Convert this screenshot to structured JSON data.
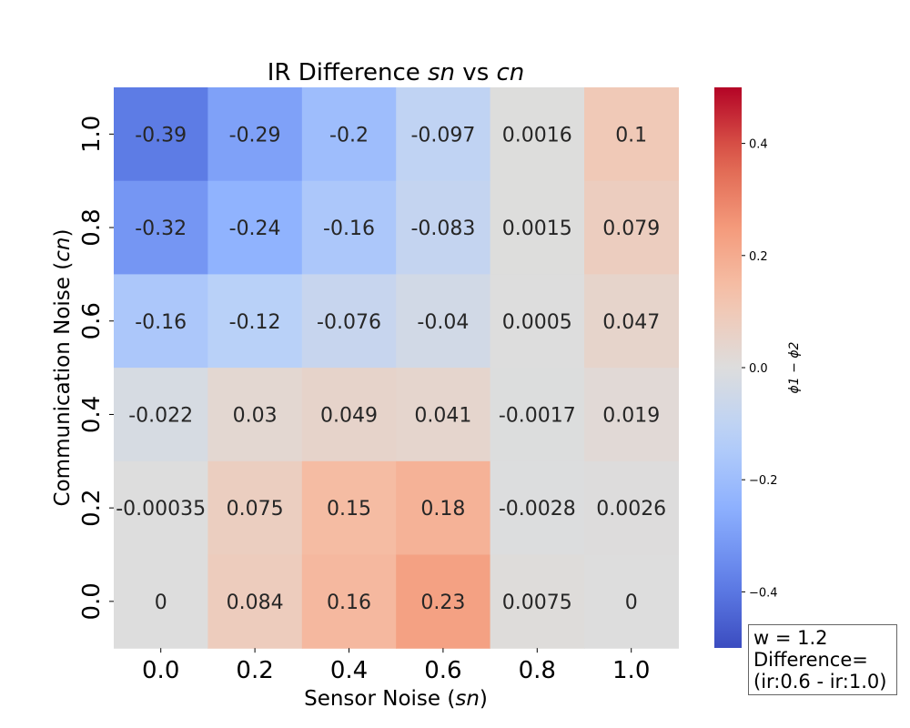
{
  "chart_data": {
    "type": "heatmap",
    "title": "IR Difference sn vs cn",
    "title_parts": {
      "prefix": "IR Difference ",
      "var1": "sn",
      "mid": " vs ",
      "var2": "cn"
    },
    "xlabel": "Sensor Noise (sn)",
    "xlabel_parts": {
      "prefix": "Sensor Noise (",
      "var": "sn",
      "suffix": ")"
    },
    "ylabel": "Communication Noise (cn)",
    "ylabel_parts": {
      "prefix": "Communication Noise (",
      "var": "cn",
      "suffix": ")"
    },
    "x_categories": [
      "0.0",
      "0.2",
      "0.4",
      "0.6",
      "0.8",
      "1.0"
    ],
    "y_categories": [
      "1.0",
      "0.8",
      "0.6",
      "0.4",
      "0.2",
      "0.0"
    ],
    "values": [
      [
        -0.39,
        -0.29,
        -0.2,
        -0.097,
        0.0016,
        0.1
      ],
      [
        -0.32,
        -0.24,
        -0.16,
        -0.083,
        0.0015,
        0.079
      ],
      [
        -0.16,
        -0.12,
        -0.076,
        -0.04,
        0.0005,
        0.047
      ],
      [
        -0.022,
        0.03,
        0.049,
        0.041,
        -0.0017,
        0.019
      ],
      [
        -0.00035,
        0.075,
        0.15,
        0.18,
        -0.0028,
        0.0026
      ],
      [
        0,
        0.084,
        0.16,
        0.23,
        0.0075,
        0
      ]
    ],
    "labels": [
      [
        "-0.39",
        "-0.29",
        "-0.2",
        "-0.097",
        "0.0016",
        "0.1"
      ],
      [
        "-0.32",
        "-0.24",
        "-0.16",
        "-0.083",
        "0.0015",
        "0.079"
      ],
      [
        "-0.16",
        "-0.12",
        "-0.076",
        "-0.04",
        "0.0005",
        "0.047"
      ],
      [
        "-0.022",
        "0.03",
        "0.049",
        "0.041",
        "-0.0017",
        "0.019"
      ],
      [
        "-0.00035",
        "0.075",
        "0.15",
        "0.18",
        "-0.0028",
        "0.0026"
      ],
      [
        "0",
        "0.084",
        "0.16",
        "0.23",
        "0.0075",
        "0"
      ]
    ],
    "colorbar": {
      "label": "ϕ1 − ϕ2",
      "vmin": -0.5,
      "vmax": 0.5,
      "ticks": [
        0.4,
        0.2,
        0.0,
        -0.2,
        -0.4
      ],
      "tick_labels": [
        "0.4",
        "0.2",
        "0.0",
        "−0.2",
        "−0.4"
      ],
      "colormap": "coolwarm"
    },
    "annotation": {
      "line1": "w = 1.2",
      "line2": "Difference=",
      "line3": "(ir:0.6 - ir:1.0)"
    },
    "legend": "none",
    "grid": false
  }
}
